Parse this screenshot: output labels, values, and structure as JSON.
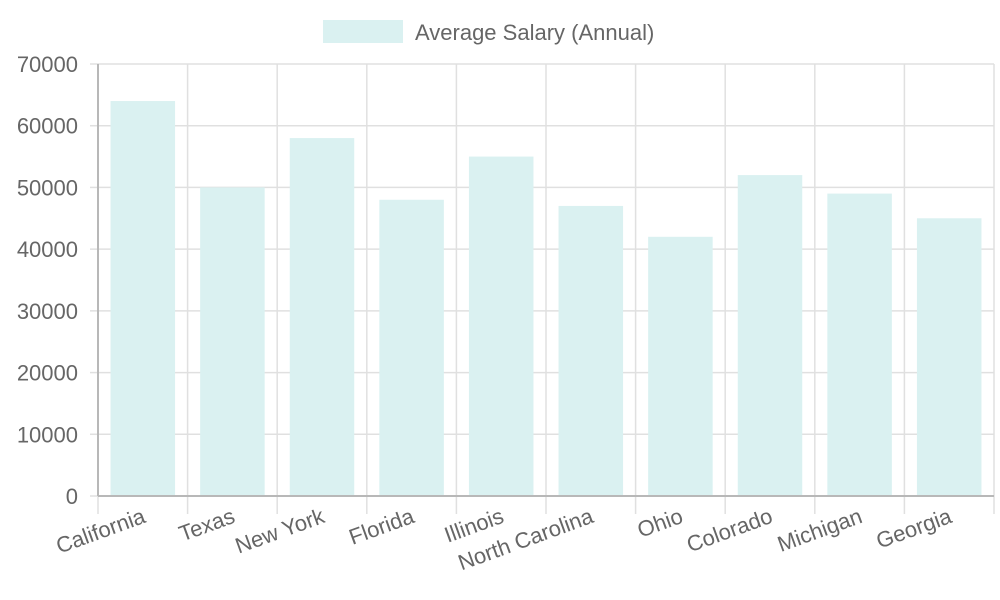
{
  "chart_data": {
    "type": "bar",
    "categories": [
      "California",
      "Texas",
      "New York",
      "Florida",
      "Illinois",
      "North Carolina",
      "Ohio",
      "Colorado",
      "Michigan",
      "Georgia"
    ],
    "series": [
      {
        "name": "Average Salary (Annual)",
        "values": [
          64000,
          50000,
          58000,
          48000,
          55000,
          47000,
          42000,
          52000,
          49000,
          45000
        ],
        "color": "#daf1f1"
      }
    ],
    "y_ticks": [
      "0",
      "10000",
      "20000",
      "30000",
      "40000",
      "50000",
      "60000",
      "70000"
    ],
    "ylim": [
      0,
      70000
    ],
    "grid": true,
    "legend_position": "top-center"
  }
}
